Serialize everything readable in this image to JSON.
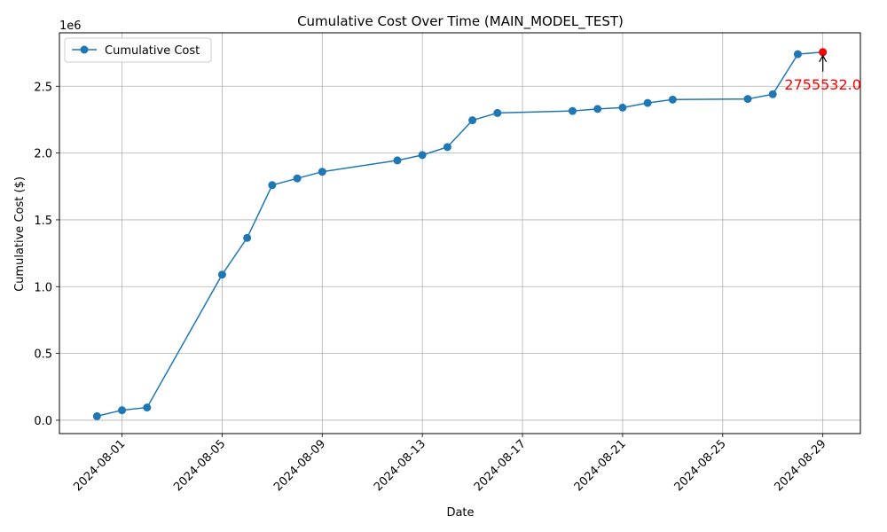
{
  "chart_data": {
    "type": "line",
    "title": "Cumulative Cost Over Time (MAIN_MODEL_TEST)",
    "xlabel": "Date",
    "ylabel": "Cumulative Cost ($)",
    "y_offset_label": "1e6",
    "grid": true,
    "legend_position": "top-left",
    "xlim": [
      "2024-07-29T12:00",
      "2024-08-30T12:00"
    ],
    "ylim": [
      -100000,
      2900000
    ],
    "x_ticks": [
      "2024-08-01",
      "2024-08-05",
      "2024-08-09",
      "2024-08-13",
      "2024-08-17",
      "2024-08-21",
      "2024-08-25",
      "2024-08-29"
    ],
    "y_ticks": [
      {
        "value": 0,
        "label": "0.0"
      },
      {
        "value": 500000,
        "label": "0.5"
      },
      {
        "value": 1000000,
        "label": "1.0"
      },
      {
        "value": 1500000,
        "label": "1.5"
      },
      {
        "value": 2000000,
        "label": "2.0"
      },
      {
        "value": 2500000,
        "label": "2.5"
      }
    ],
    "series": [
      {
        "name": "Cumulative Cost",
        "color": "#1f77b4",
        "marker": "circle",
        "x": [
          "2024-07-31",
          "2024-08-01",
          "2024-08-02",
          "2024-08-05",
          "2024-08-06",
          "2024-08-07",
          "2024-08-08",
          "2024-08-09",
          "2024-08-12",
          "2024-08-13",
          "2024-08-14",
          "2024-08-15",
          "2024-08-16",
          "2024-08-19",
          "2024-08-20",
          "2024-08-21",
          "2024-08-22",
          "2024-08-23",
          "2024-08-26",
          "2024-08-27",
          "2024-08-28",
          "2024-08-29"
        ],
        "values": [
          30000,
          75000,
          95000,
          1090000,
          1365000,
          1760000,
          1810000,
          1860000,
          1945000,
          1985000,
          2045000,
          2245000,
          2300000,
          2315000,
          2330000,
          2340000,
          2375000,
          2400000,
          2405000,
          2440000,
          2740000,
          2755532
        ]
      }
    ],
    "annotation": {
      "text": "2755532.0",
      "x": "2024-08-29",
      "y": 2755532,
      "color": "#ff0000"
    }
  }
}
